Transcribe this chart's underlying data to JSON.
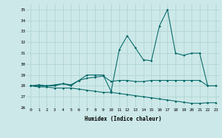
{
  "xlabel": "Humidex (Indice chaleur)",
  "x": [
    0,
    1,
    2,
    3,
    4,
    5,
    6,
    7,
    8,
    9,
    10,
    11,
    12,
    13,
    14,
    15,
    16,
    17,
    18,
    19,
    20,
    21,
    22,
    23
  ],
  "line1": [
    28,
    28,
    28,
    28,
    28.2,
    28,
    28.5,
    29,
    29,
    29,
    27.5,
    31.3,
    32.6,
    31.5,
    30.4,
    30.3,
    33.5,
    35,
    31,
    30.8,
    31,
    31,
    28,
    28
  ],
  "line2": [
    28,
    28.1,
    28.0,
    28.1,
    28.2,
    28.1,
    28.5,
    28.7,
    28.8,
    28.9,
    28.4,
    28.5,
    28.5,
    28.4,
    28.4,
    28.5,
    28.5,
    28.5,
    28.5,
    28.5,
    28.5,
    28.5,
    28.0,
    28.0
  ],
  "line3": [
    28.0,
    27.9,
    27.9,
    27.8,
    27.8,
    27.8,
    27.7,
    27.6,
    27.5,
    27.4,
    27.4,
    27.3,
    27.2,
    27.1,
    27.0,
    26.9,
    26.8,
    26.7,
    26.6,
    26.5,
    26.4,
    26.4,
    26.45,
    26.45
  ],
  "ylim": [
    26,
    35.5
  ],
  "yticks": [
    26,
    27,
    28,
    29,
    30,
    31,
    32,
    33,
    34,
    35
  ],
  "xticks": [
    0,
    1,
    2,
    3,
    4,
    5,
    6,
    7,
    8,
    9,
    10,
    11,
    12,
    13,
    14,
    15,
    16,
    17,
    18,
    19,
    20,
    21,
    22,
    23
  ],
  "line_color": "#006666",
  "bg_color": "#cce8e8",
  "grid_color": "#aacfcf",
  "marker": "D",
  "marker_size": 1.8,
  "linewidth": 0.8
}
